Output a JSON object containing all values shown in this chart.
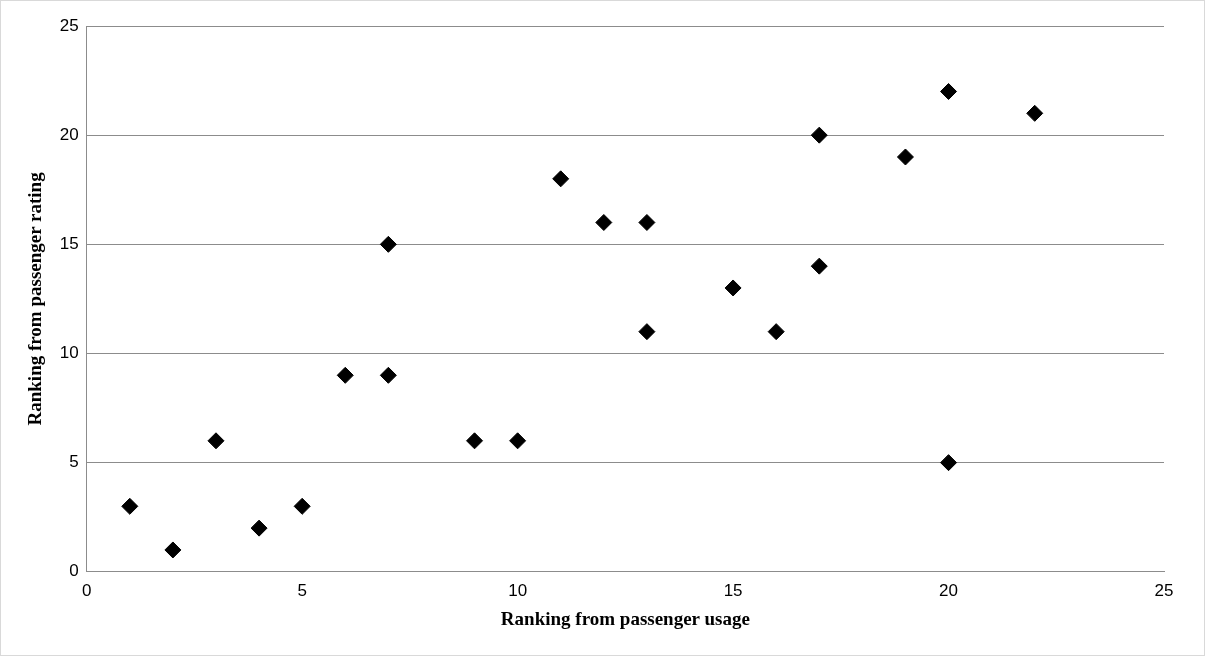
{
  "chart_data": {
    "type": "scatter",
    "xlabel": "Ranking from passenger usage",
    "ylabel": "Ranking from passenger rating",
    "x": [
      1,
      2,
      3,
      4,
      5,
      6,
      7,
      7,
      9,
      10,
      11,
      12,
      13,
      13,
      15,
      16,
      17,
      17,
      19,
      20,
      20,
      22
    ],
    "values": [
      3,
      1,
      6,
      2,
      3,
      9,
      15,
      9,
      6,
      6,
      18,
      16,
      16,
      11,
      13,
      11,
      20,
      14,
      19,
      22,
      5,
      21
    ],
    "color": "#000000",
    "marker": "diamond",
    "xlim": [
      0,
      25
    ],
    "xticks": [
      0,
      5,
      10,
      15,
      20,
      25
    ],
    "ylim": [
      0,
      25
    ],
    "yticks": [
      0,
      5,
      10,
      15,
      20,
      25
    ],
    "grid": "y",
    "legend": false
  }
}
